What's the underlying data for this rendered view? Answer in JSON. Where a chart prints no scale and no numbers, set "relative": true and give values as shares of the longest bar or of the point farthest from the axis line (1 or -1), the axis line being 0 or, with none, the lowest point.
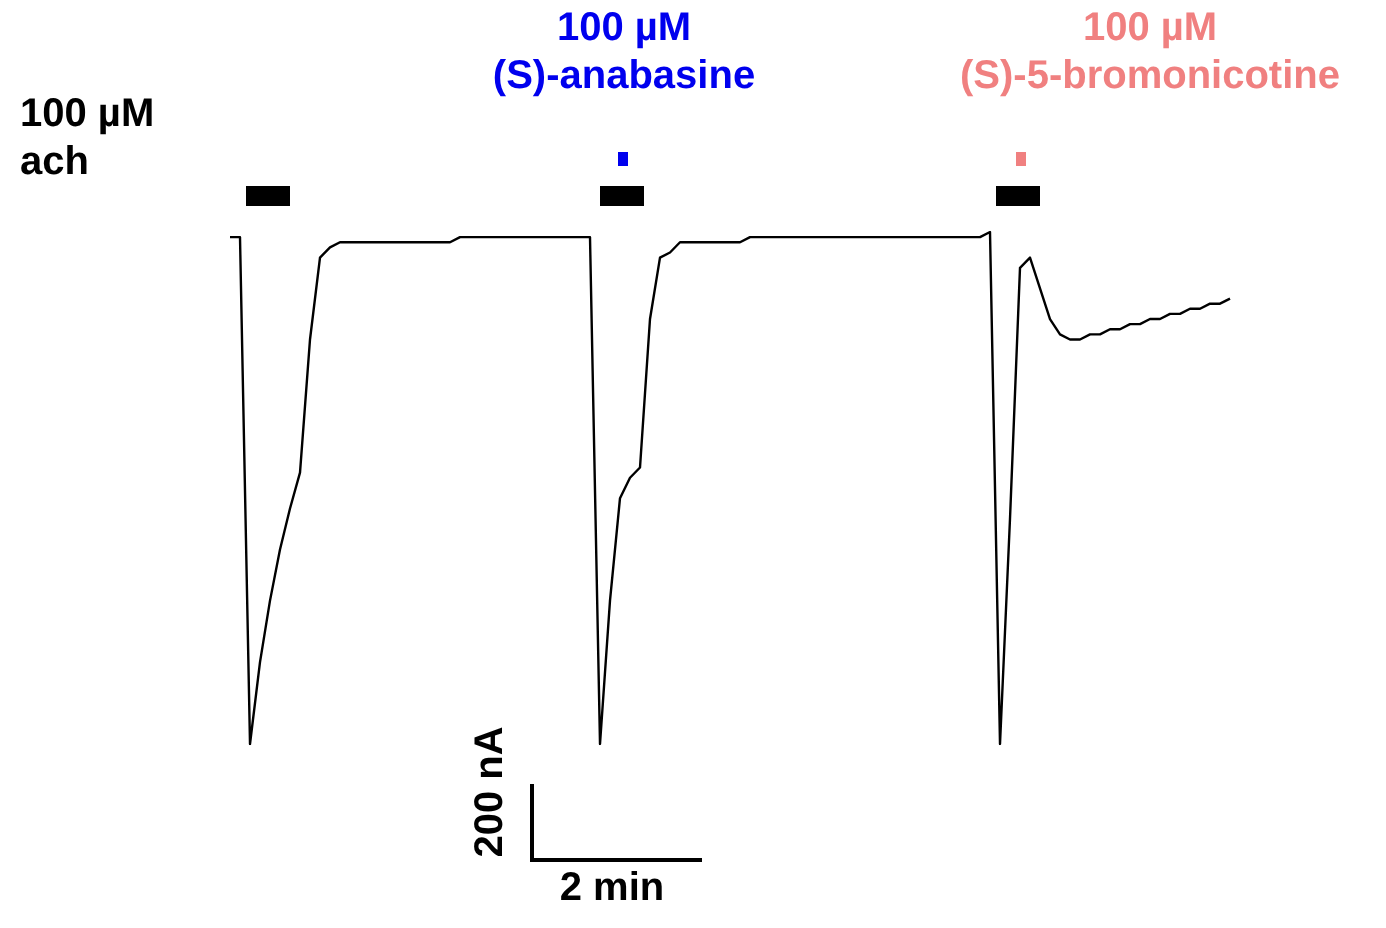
{
  "chart_data": {
    "type": "line",
    "relative": true,
    "categories": [
      null,
      null,
      null,
      null,
      null,
      null,
      null,
      null,
      null,
      null,
      null,
      null,
      null,
      null,
      null,
      null,
      null,
      null,
      null,
      null,
      null,
      null,
      null,
      null,
      null,
      null,
      null,
      null,
      null,
      null,
      null,
      null,
      null,
      null,
      null,
      null,
      null,
      null,
      null,
      null,
      null,
      null,
      null,
      null,
      null,
      null,
      null,
      null,
      null,
      null,
      null,
      null,
      null,
      null,
      null,
      null,
      null,
      null,
      null,
      null,
      null,
      null,
      null,
      null,
      null,
      null,
      null,
      null,
      null,
      null,
      null,
      null,
      null,
      null,
      null,
      null,
      null,
      null,
      null,
      null,
      null,
      null,
      null,
      null,
      null,
      null,
      null,
      null,
      null,
      null,
      null,
      null,
      null,
      null,
      null,
      null,
      null,
      null,
      null,
      null,
      null
    ],
    "series": [
      {
        "color": "#000000",
        "values": [
          0.99,
          0.99,
          0,
          0.16,
          0.28,
          0.38,
          0.46,
          0.53,
          0.79,
          0.95,
          0.97,
          0.98,
          0.98,
          0.98,
          0.98,
          0.98,
          0.98,
          0.98,
          0.98,
          0.98,
          0.98,
          0.98,
          0.98,
          0.99,
          0.99,
          0.99,
          0.99,
          0.99,
          0.99,
          0.99,
          0.99,
          0.99,
          0.99,
          0.99,
          0.99,
          0.99,
          0.99,
          0,
          0.28,
          0.48,
          0.52,
          0.54,
          0.83,
          0.95,
          0.96,
          0.98,
          0.98,
          0.98,
          0.98,
          0.98,
          0.98,
          0.98,
          0.99,
          0.99,
          0.99,
          0.99,
          0.99,
          0.99,
          0.99,
          0.99,
          0.99,
          0.99,
          0.99,
          0.99,
          0.99,
          0.99,
          0.99,
          0.99,
          0.99,
          0.99,
          0.99,
          0.99,
          0.99,
          0.99,
          0.99,
          0.99,
          1.0,
          0,
          0.44,
          0.93,
          0.95,
          0.89,
          0.83,
          0.8,
          0.79,
          0.79,
          0.8,
          0.8,
          0.81,
          0.81,
          0.82,
          0.82,
          0.83,
          0.83,
          0.84,
          0.84,
          0.85,
          0.85,
          0.86,
          0.86,
          0.87
        ]
      }
    ],
    "annotations": [
      "100 µM\nach",
      "100 µM\n(S)-anabasine",
      "100 µM\n(S)-5-bromonicotine",
      "200 nA",
      "2 min"
    ]
  }
}
